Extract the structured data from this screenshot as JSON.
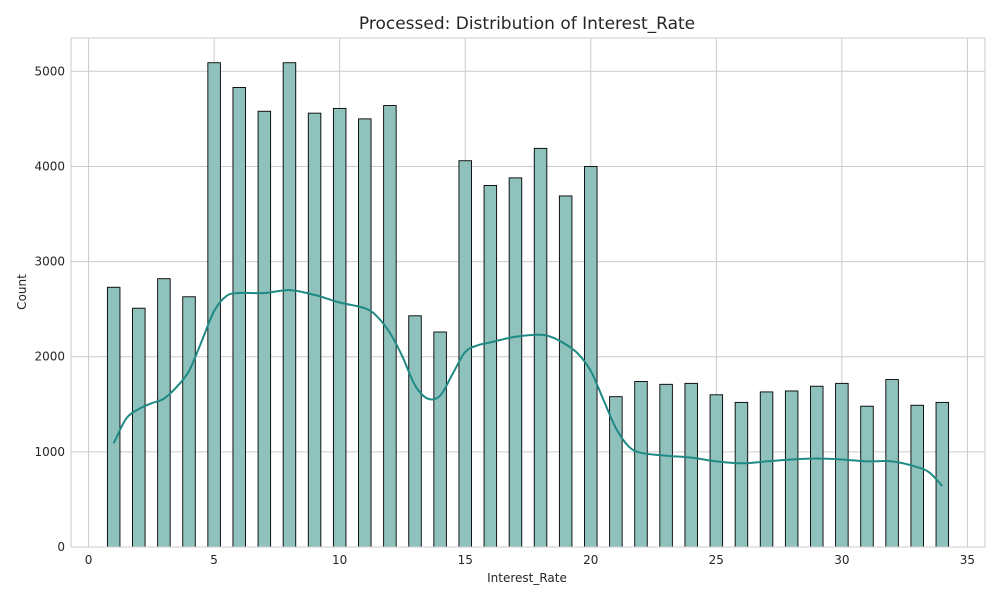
{
  "chart_data": {
    "type": "bar",
    "title": "Processed: Distribution of Interest_Rate",
    "xlabel": "Interest_Rate",
    "ylabel": "Count",
    "xlim": [
      -0.7,
      35.7
    ],
    "ylim": [
      0,
      5350
    ],
    "xticks": [
      0,
      5,
      10,
      15,
      20,
      25,
      30,
      35
    ],
    "yticks": [
      0,
      1000,
      2000,
      3000,
      4000,
      5000
    ],
    "grid": true,
    "bar_color": "#8fc2bd",
    "bar_edge_color": "#000000",
    "kde_color": "#1f8a84",
    "bins": [
      {
        "x": 1,
        "count": 2730
      },
      {
        "x": 2,
        "count": 2510
      },
      {
        "x": 3,
        "count": 2820
      },
      {
        "x": 4,
        "count": 2630
      },
      {
        "x": 5,
        "count": 5090
      },
      {
        "x": 6,
        "count": 4830
      },
      {
        "x": 7,
        "count": 4580
      },
      {
        "x": 8,
        "count": 5090
      },
      {
        "x": 9,
        "count": 4560
      },
      {
        "x": 10,
        "count": 4610
      },
      {
        "x": 11,
        "count": 4500
      },
      {
        "x": 12,
        "count": 4640
      },
      {
        "x": 13,
        "count": 2430
      },
      {
        "x": 14,
        "count": 2260
      },
      {
        "x": 15,
        "count": 4060
      },
      {
        "x": 16,
        "count": 3800
      },
      {
        "x": 17,
        "count": 3880
      },
      {
        "x": 18,
        "count": 4190
      },
      {
        "x": 19,
        "count": 3690
      },
      {
        "x": 20,
        "count": 4000
      },
      {
        "x": 21,
        "count": 1580
      },
      {
        "x": 22,
        "count": 1740
      },
      {
        "x": 23,
        "count": 1710
      },
      {
        "x": 24,
        "count": 1720
      },
      {
        "x": 25,
        "count": 1600
      },
      {
        "x": 26,
        "count": 1520
      },
      {
        "x": 27,
        "count": 1630
      },
      {
        "x": 28,
        "count": 1640
      },
      {
        "x": 29,
        "count": 1690
      },
      {
        "x": 30,
        "count": 1720
      },
      {
        "x": 31,
        "count": 1480
      },
      {
        "x": 32,
        "count": 1760
      },
      {
        "x": 33,
        "count": 1490
      },
      {
        "x": 34,
        "count": 1520
      }
    ],
    "kde": {
      "x": [
        1,
        1.5,
        2,
        2.5,
        3,
        3.5,
        4,
        4.5,
        5,
        5.5,
        6,
        7,
        8,
        9,
        10,
        11,
        11.5,
        12,
        12.5,
        13,
        13.5,
        14,
        14.5,
        15,
        15.5,
        16,
        17,
        18,
        18.5,
        19,
        19.5,
        20,
        20.5,
        21,
        21.5,
        22,
        23,
        24,
        25,
        26,
        27,
        28,
        29,
        30,
        31,
        32,
        33,
        33.5,
        34
      ],
      "y": [
        1090,
        1350,
        1450,
        1510,
        1560,
        1680,
        1850,
        2160,
        2480,
        2640,
        2670,
        2670,
        2700,
        2650,
        2570,
        2510,
        2420,
        2250,
        2000,
        1700,
        1560,
        1590,
        1820,
        2050,
        2120,
        2150,
        2210,
        2230,
        2200,
        2130,
        2030,
        1850,
        1550,
        1250,
        1060,
        990,
        960,
        940,
        900,
        880,
        900,
        920,
        930,
        920,
        900,
        900,
        840,
        780,
        640
      ]
    }
  }
}
